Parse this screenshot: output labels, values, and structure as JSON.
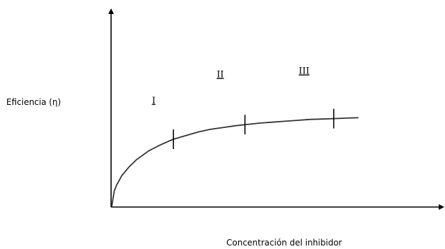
{
  "chart_data": {
    "type": "line",
    "title": "",
    "xlabel": "Concentración del inhibidor",
    "ylabel": "Eficiencia (η)",
    "axis_ticks": false,
    "grid": false,
    "legend": "none",
    "colors": {
      "axis": "#000000",
      "curve": "#333333"
    },
    "series": [
      {
        "values_note": "",
        "x": [
          0,
          1,
          2,
          4,
          7,
          10,
          15,
          20,
          25,
          30,
          35,
          40,
          45,
          50,
          55,
          60,
          65,
          70,
          75,
          80,
          85,
          90,
          95,
          100
        ],
        "y": [
          0,
          17,
          24,
          34,
          44,
          52,
          62,
          69,
          75,
          79,
          83,
          86,
          88,
          90,
          91.5,
          93,
          94,
          95,
          96,
          97,
          97.5,
          98,
          98.5,
          99
        ]
      }
    ],
    "boundaries": [
      {
        "x": 25,
        "y": 75
      },
      {
        "x": 54,
        "y": 91.3
      },
      {
        "x": 90,
        "y": 98
      }
    ],
    "regions": [
      {
        "label": "I",
        "x": 17,
        "y": 115
      },
      {
        "label": "II",
        "x": 44,
        "y": 144
      },
      {
        "label": "III",
        "x": 78,
        "y": 148
      }
    ]
  }
}
